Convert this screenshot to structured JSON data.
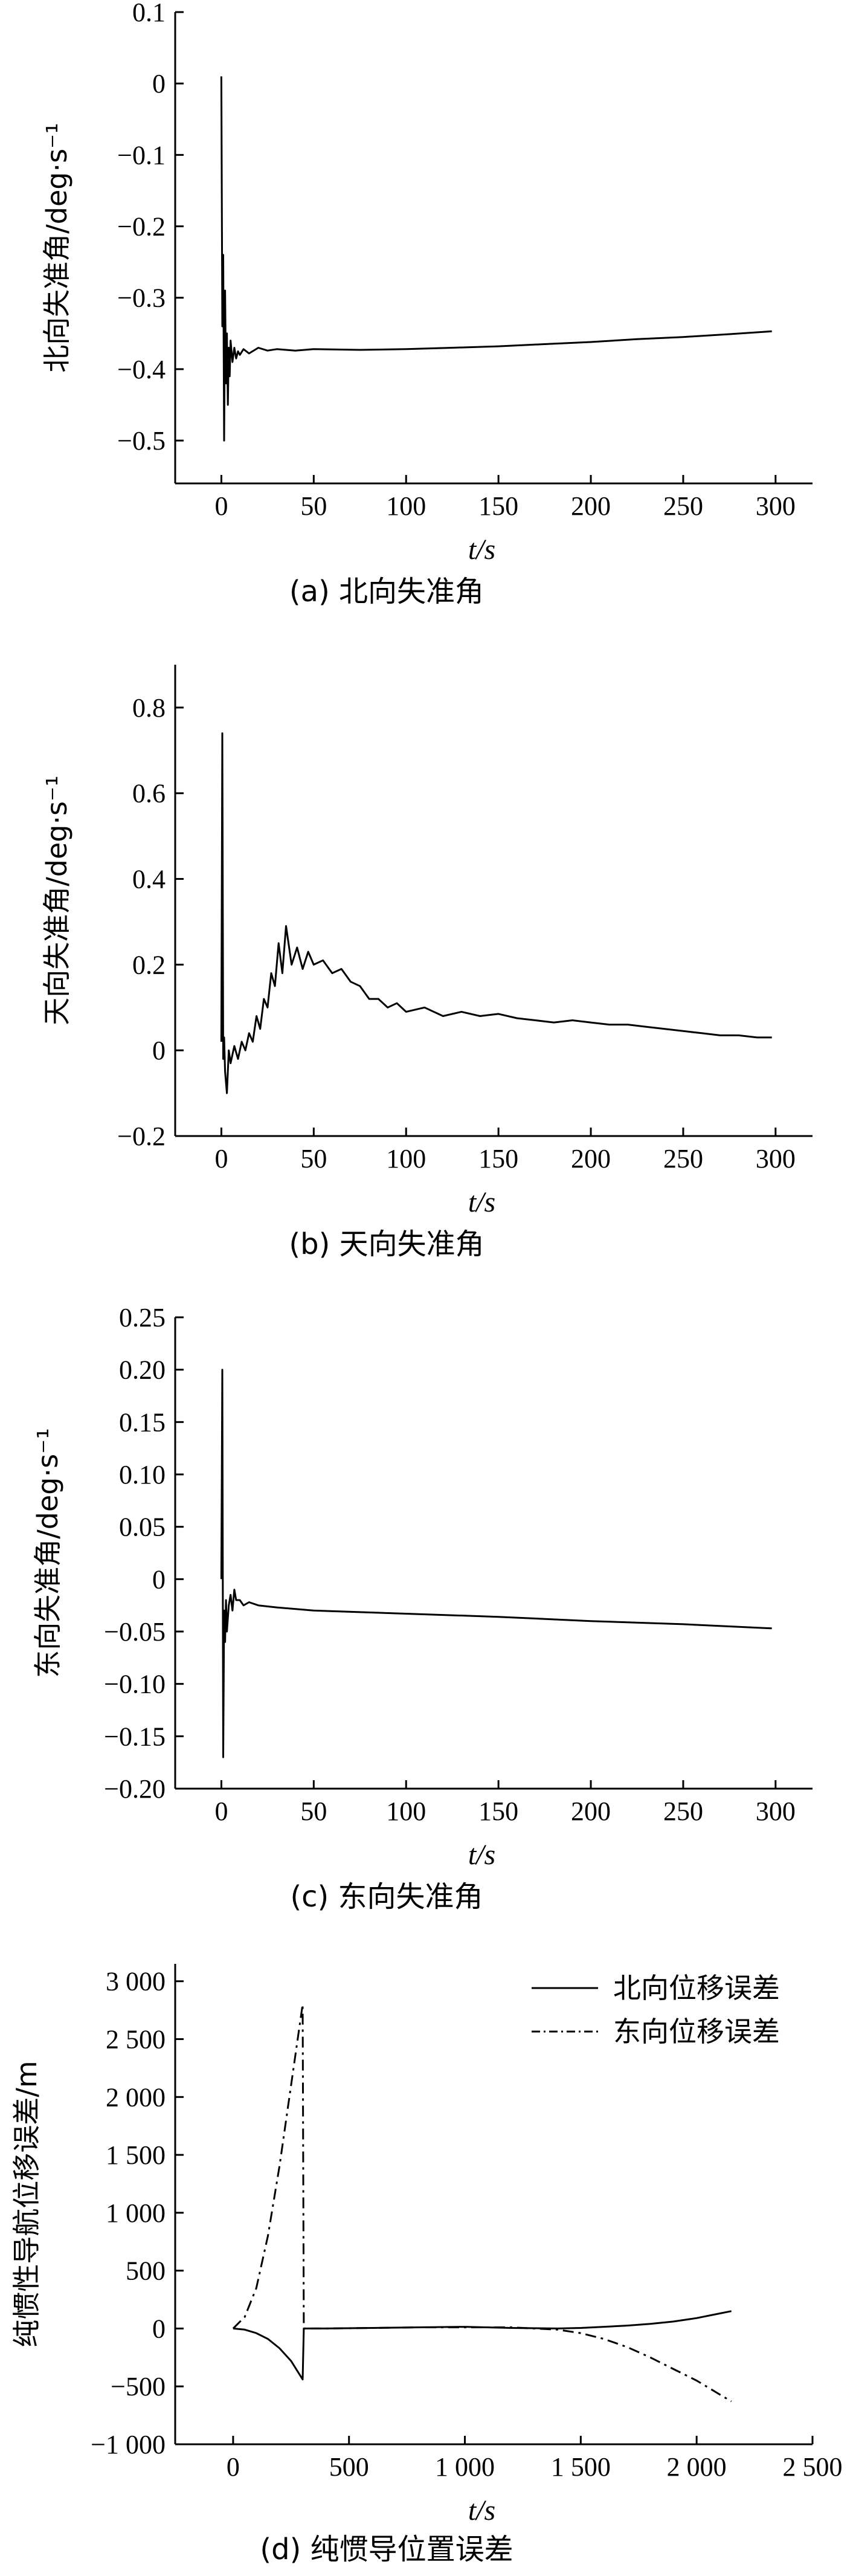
{
  "chart_data": [
    {
      "type": "line",
      "caption": "(a) 北向失准角",
      "xlabel": "t/s",
      "ylabel": "北向失准角/deg·s⁻¹",
      "xlim": [
        -25,
        320
      ],
      "ylim": [
        -0.56,
        0.1
      ],
      "xticks": [
        "0",
        "50",
        "100",
        "150",
        "200",
        "250",
        "300"
      ],
      "yticks": [
        "0.1",
        "0",
        "−0.1",
        "−0.2",
        "−0.3",
        "−0.4",
        "−0.5"
      ],
      "series": [
        {
          "x": [
            0,
            0.5,
            1,
            1.5,
            2,
            2.5,
            3,
            3.5,
            4,
            4.5,
            5,
            6,
            7,
            8,
            9,
            10,
            12,
            15,
            20,
            25,
            30,
            40,
            50,
            75,
            100,
            125,
            150,
            175,
            200,
            225,
            250,
            275,
            298
          ],
          "y": [
            0.01,
            -0.34,
            -0.24,
            -0.5,
            -0.29,
            -0.42,
            -0.35,
            -0.45,
            -0.37,
            -0.41,
            -0.36,
            -0.39,
            -0.37,
            -0.385,
            -0.375,
            -0.38,
            -0.372,
            -0.378,
            -0.37,
            -0.374,
            -0.372,
            -0.374,
            -0.372,
            -0.373,
            -0.372,
            -0.37,
            -0.368,
            -0.365,
            -0.362,
            -0.358,
            -0.355,
            -0.351,
            -0.347
          ]
        }
      ]
    },
    {
      "type": "line",
      "caption": "(b) 天向失准角",
      "xlabel": "t/s",
      "ylabel": "天向失准角/deg·s⁻¹",
      "xlim": [
        -25,
        320
      ],
      "ylim": [
        -0.2,
        0.9
      ],
      "xticks": [
        "0",
        "50",
        "100",
        "150",
        "200",
        "250",
        "300"
      ],
      "yticks": [
        "0.8",
        "0.6",
        "0.4",
        "0.2",
        "0",
        "−0.2"
      ],
      "series": [
        {
          "x": [
            0,
            0.5,
            1,
            1.5,
            2,
            3,
            4,
            5,
            7,
            9,
            11,
            13,
            15,
            17,
            19,
            21,
            23,
            25,
            27,
            29,
            31,
            33,
            35,
            38,
            41,
            44,
            47,
            50,
            55,
            60,
            65,
            70,
            75,
            80,
            85,
            90,
            95,
            100,
            110,
            120,
            130,
            140,
            150,
            160,
            170,
            180,
            190,
            200,
            210,
            220,
            230,
            240,
            250,
            260,
            270,
            280,
            290,
            298
          ],
          "y": [
            0.02,
            0.74,
            -0.02,
            0.03,
            -0.05,
            -0.1,
            0.0,
            -0.03,
            0.01,
            -0.02,
            0.02,
            0.0,
            0.04,
            0.02,
            0.08,
            0.05,
            0.12,
            0.1,
            0.18,
            0.15,
            0.25,
            0.18,
            0.29,
            0.2,
            0.24,
            0.19,
            0.23,
            0.2,
            0.21,
            0.18,
            0.19,
            0.16,
            0.15,
            0.12,
            0.12,
            0.1,
            0.11,
            0.09,
            0.1,
            0.08,
            0.09,
            0.08,
            0.085,
            0.075,
            0.07,
            0.065,
            0.07,
            0.065,
            0.06,
            0.06,
            0.055,
            0.05,
            0.045,
            0.04,
            0.035,
            0.035,
            0.03,
            0.03
          ]
        }
      ]
    },
    {
      "type": "line",
      "caption": "(c) 东向失准角",
      "xlabel": "t/s",
      "ylabel": "东向失准角/deg·s⁻¹",
      "xlim": [
        -25,
        320
      ],
      "ylim": [
        -0.2,
        0.25
      ],
      "xticks": [
        "0",
        "50",
        "100",
        "150",
        "200",
        "250",
        "300"
      ],
      "yticks": [
        "0.25",
        "0.20",
        "0.15",
        "0.10",
        "0.05",
        "0",
        "−0.05",
        "−0.10",
        "−0.15",
        "−0.20"
      ],
      "series": [
        {
          "x": [
            0,
            0.5,
            1,
            1.5,
            2,
            2.5,
            3,
            4,
            5,
            6,
            7,
            8,
            10,
            12,
            15,
            20,
            30,
            50,
            100,
            150,
            200,
            250,
            298
          ],
          "y": [
            0.0,
            0.2,
            -0.17,
            -0.03,
            -0.06,
            -0.02,
            -0.05,
            -0.025,
            -0.015,
            -0.03,
            -0.01,
            -0.02,
            -0.02,
            -0.025,
            -0.022,
            -0.025,
            -0.027,
            -0.03,
            -0.033,
            -0.036,
            -0.04,
            -0.043,
            -0.047
          ]
        }
      ]
    },
    {
      "type": "line",
      "caption": "(d) 纯惯导位置误差",
      "xlabel": "t/s",
      "ylabel": "纯惯性导航位移误差/m",
      "xlim": [
        -250,
        2500
      ],
      "ylim": [
        -1000,
        3150
      ],
      "xticks": [
        "0",
        "500",
        "1 000",
        "1 500",
        "2 000",
        "2 500"
      ],
      "yticks": [
        "3 000",
        "2 500",
        "2 000",
        "1 500",
        "1 000",
        "500",
        "0",
        "−500",
        "−1 000"
      ],
      "legend_position": "top-right",
      "series": [
        {
          "name": "北向位移误差",
          "style": "solid",
          "x": [
            0,
            50,
            100,
            150,
            200,
            250,
            300,
            305,
            400,
            600,
            800,
            1000,
            1200,
            1400,
            1500,
            1600,
            1700,
            1800,
            1900,
            2000,
            2100,
            2150
          ],
          "y": [
            0,
            -10,
            -40,
            -90,
            -170,
            -280,
            -440,
            0,
            0,
            5,
            10,
            15,
            5,
            0,
            5,
            15,
            25,
            40,
            60,
            90,
            130,
            150
          ]
        },
        {
          "name": "东向位移误差",
          "style": "dashdot",
          "x": [
            0,
            50,
            100,
            150,
            200,
            250,
            300,
            305,
            400,
            600,
            800,
            1000,
            1200,
            1400,
            1500,
            1600,
            1700,
            1800,
            1900,
            2000,
            2100,
            2150
          ],
          "y": [
            0,
            100,
            350,
            800,
            1400,
            2100,
            2800,
            0,
            0,
            5,
            10,
            10,
            10,
            -10,
            -40,
            -90,
            -160,
            -250,
            -350,
            -450,
            -570,
            -630
          ]
        }
      ]
    }
  ]
}
